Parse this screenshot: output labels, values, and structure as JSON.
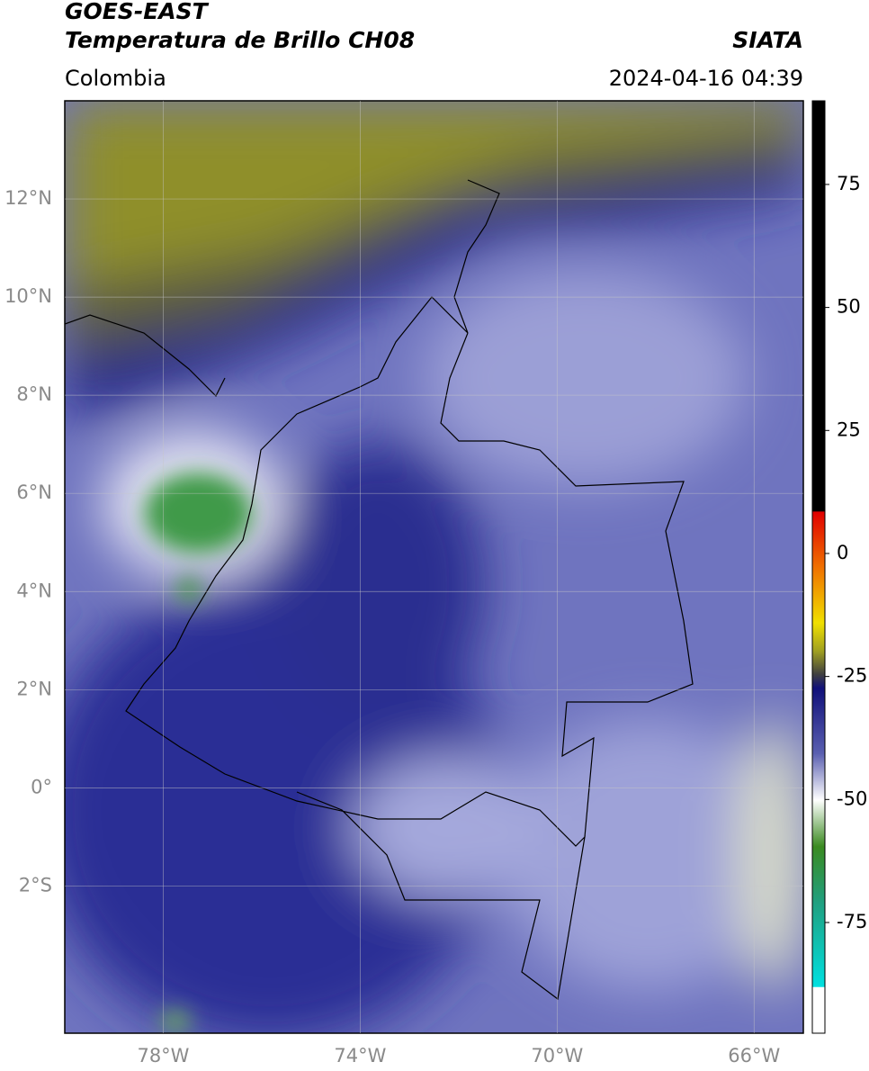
{
  "header": {
    "title": "GOES-EAST",
    "subtitle": "Temperatura de Brillo CH08",
    "source": "SIATA",
    "region": "Colombia",
    "datetime": "2024-04-16 04:39"
  },
  "map": {
    "lon_range": [
      -80,
      -65
    ],
    "lat_range": [
      -5,
      14
    ],
    "lat_ticks": [
      {
        "value": 12,
        "label": "12°N"
      },
      {
        "value": 10,
        "label": "10°N"
      },
      {
        "value": 8,
        "label": "8°N"
      },
      {
        "value": 6,
        "label": "6°N"
      },
      {
        "value": 4,
        "label": "4°N"
      },
      {
        "value": 2,
        "label": "2°N"
      },
      {
        "value": 0,
        "label": "0°"
      },
      {
        "value": -2,
        "label": "2°S"
      }
    ],
    "lon_ticks": [
      {
        "value": -78,
        "label": "78°W"
      },
      {
        "value": -74,
        "label": "74°W"
      },
      {
        "value": -70,
        "label": "70°W"
      },
      {
        "value": -66,
        "label": "66°W"
      }
    ]
  },
  "colorbar": {
    "range": [
      -97.5,
      92
    ],
    "ticks": [
      75,
      50,
      25,
      0,
      -25,
      -50,
      -75
    ]
  }
}
